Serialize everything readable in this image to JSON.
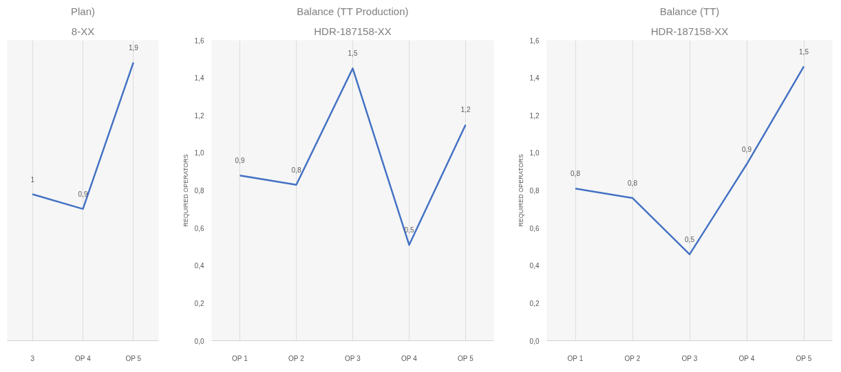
{
  "chart_data": [
    {
      "type": "line",
      "title": "Plan)",
      "subtitle": "8-XX",
      "categories": [
        "3",
        "OP 4",
        "OP 5"
      ],
      "series": [
        {
          "color": "#4472c4",
          "values": [
            1.0,
            0.9,
            1.9
          ],
          "value_labels": [
            "1",
            "0,9",
            "1,9"
          ]
        }
      ],
      "grid": "x",
      "marker": "none",
      "tick_labels": "x"
    },
    {
      "type": "line",
      "title": "Balance (TT Production)",
      "subtitle": "HDR-187158-XX",
      "ylabel": "REQUIRED OPERATORS",
      "categories": [
        "OP 1",
        "OP 2",
        "OP 3",
        "OP 4",
        "OP 5"
      ],
      "ylim": [
        0,
        1.6
      ],
      "yticks": [
        {
          "value": 0,
          "label": "0,0"
        },
        {
          "value": 0.2,
          "label": "0,2"
        },
        {
          "value": 0.4,
          "label": "0,4"
        },
        {
          "value": 0.6,
          "label": "0,6"
        },
        {
          "value": 0.8,
          "label": "0,8"
        },
        {
          "value": 1.0,
          "label": "1,0"
        },
        {
          "value": 1.2,
          "label": "1,2"
        },
        {
          "value": 1.4,
          "label": "1,4"
        },
        {
          "value": 1.6,
          "label": "1,6"
        }
      ],
      "series": [
        {
          "color": "#4472c4",
          "values": [
            0.88,
            0.83,
            1.45,
            0.51,
            1.15
          ],
          "value_labels": [
            "0,9",
            "0,8",
            "1,5",
            "0,5",
            "1,2"
          ]
        }
      ],
      "grid": "x",
      "marker": "none"
    },
    {
      "type": "line",
      "title": "Balance (TT)",
      "subtitle": "HDR-187158-XX",
      "ylabel": "REQUIRED OPERATORS",
      "categories": [
        "OP 1",
        "OP 2",
        "OP 3",
        "OP 4",
        "OP 5"
      ],
      "ylim": [
        0,
        1.6
      ],
      "yticks": [
        {
          "value": 0,
          "label": "0,0"
        },
        {
          "value": 0.2,
          "label": "0,2"
        },
        {
          "value": 0.4,
          "label": "0,4"
        },
        {
          "value": 0.6,
          "label": "0,6"
        },
        {
          "value": 0.8,
          "label": "0,8"
        },
        {
          "value": 1.0,
          "label": "1,0"
        },
        {
          "value": 1.2,
          "label": "1,2"
        },
        {
          "value": 1.4,
          "label": "1,4"
        },
        {
          "value": 1.6,
          "label": "1,6"
        }
      ],
      "series": [
        {
          "color": "#4472c4",
          "values": [
            0.81,
            0.76,
            0.46,
            0.94,
            1.46
          ],
          "value_labels": [
            "0,8",
            "0,8",
            "0,5",
            "0,9",
            "1,5"
          ]
        }
      ],
      "grid": "x",
      "marker": "none"
    }
  ]
}
